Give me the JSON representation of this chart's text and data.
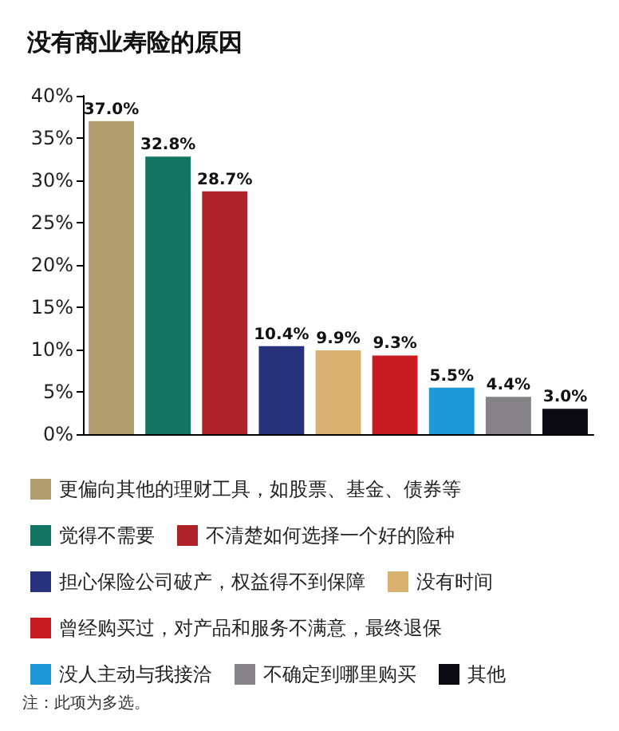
{
  "chart_data": {
    "type": "bar",
    "title": "没有商业寿险的原因",
    "categories": [
      null,
      null,
      null,
      null,
      null,
      null,
      null,
      null,
      null
    ],
    "series": [
      {
        "name": "更偏向其他的理财工具，如股票、基金、债券等",
        "color": "#b19d6e",
        "values": [
          37.0,
          null,
          null,
          null,
          null,
          null,
          null,
          null,
          null
        ],
        "value_labels": [
          "37.0%",
          null,
          null,
          null,
          null,
          null,
          null,
          null,
          null
        ]
      },
      {
        "name": "觉得不需要",
        "color": "#137461",
        "values": [
          null,
          32.8,
          null,
          null,
          null,
          null,
          null,
          null,
          null
        ],
        "value_labels": [
          null,
          "32.8%",
          null,
          null,
          null,
          null,
          null,
          null,
          null
        ]
      },
      {
        "name": "不清楚如何选择一个好的险种",
        "color": "#b0222a",
        "values": [
          null,
          null,
          28.7,
          null,
          null,
          null,
          null,
          null,
          null
        ],
        "value_labels": [
          null,
          null,
          "28.7%",
          null,
          null,
          null,
          null,
          null,
          null
        ]
      },
      {
        "name": "担心保险公司破产，权益得不到保障",
        "color": "#27317c",
        "values": [
          null,
          null,
          null,
          10.4,
          null,
          null,
          null,
          null,
          null
        ],
        "value_labels": [
          null,
          null,
          null,
          "10.4%",
          null,
          null,
          null,
          null,
          null
        ]
      },
      {
        "name": "没有时间",
        "color": "#d9b271",
        "values": [
          null,
          null,
          null,
          null,
          9.9,
          null,
          null,
          null,
          null
        ],
        "value_labels": [
          null,
          null,
          null,
          null,
          "9.9%",
          null,
          null,
          null,
          null
        ]
      },
      {
        "name": "曾经购买过，对产品和服务不满意，最终退保",
        "color": "#c81c22",
        "values": [
          null,
          null,
          null,
          null,
          null,
          9.3,
          null,
          null,
          null
        ],
        "value_labels": [
          null,
          null,
          null,
          null,
          null,
          "9.3%",
          null,
          null,
          null
        ]
      },
      {
        "name": "没人主动与我接洽",
        "color": "#1d9ad6",
        "values": [
          null,
          null,
          null,
          null,
          null,
          null,
          5.5,
          null,
          null
        ],
        "value_labels": [
          null,
          null,
          null,
          null,
          null,
          null,
          "5.5%",
          null,
          null
        ]
      },
      {
        "name": "不确定到哪里购买",
        "color": "#848286",
        "values": [
          null,
          null,
          null,
          null,
          null,
          null,
          null,
          4.4,
          null
        ],
        "value_labels": [
          null,
          null,
          null,
          null,
          null,
          null,
          null,
          "4.4%",
          null
        ]
      },
      {
        "name": "其他",
        "color": "#0d0b12",
        "values": [
          null,
          null,
          null,
          null,
          null,
          null,
          null,
          null,
          3.0
        ],
        "value_labels": [
          null,
          null,
          null,
          null,
          null,
          null,
          null,
          null,
          "3.0%"
        ]
      }
    ],
    "ylim": [
      0,
      40
    ],
    "yticks": [
      {
        "value": 0,
        "label": "0%"
      },
      {
        "value": 5,
        "label": "5%"
      },
      {
        "value": 10,
        "label": "10%"
      },
      {
        "value": 15,
        "label": "15%"
      },
      {
        "value": 20,
        "label": "20%"
      },
      {
        "value": 25,
        "label": "25%"
      },
      {
        "value": 30,
        "label": "30%"
      },
      {
        "value": 35,
        "label": "35%"
      },
      {
        "value": 40,
        "label": "40%"
      }
    ],
    "grid": false,
    "legend": "bottom",
    "tick_labels": "y",
    "annotations": [
      "注：此项为多选。"
    ]
  }
}
